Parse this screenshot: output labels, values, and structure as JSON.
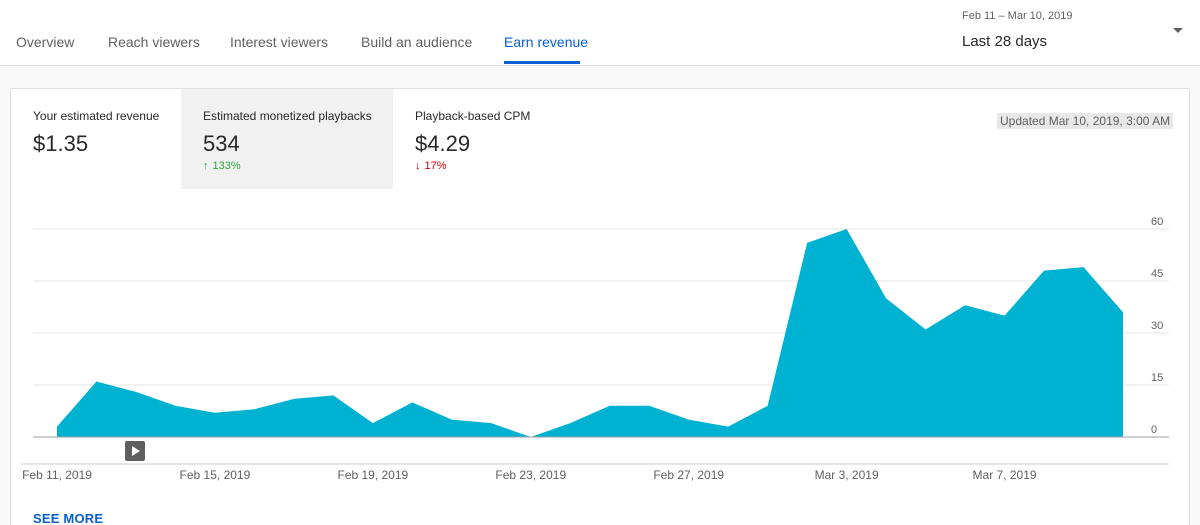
{
  "tabs": [
    {
      "label": "Overview"
    },
    {
      "label": "Reach viewers"
    },
    {
      "label": "Interest viewers"
    },
    {
      "label": "Build an audience"
    },
    {
      "label": "Earn revenue",
      "active": true
    }
  ],
  "date_filter": {
    "range": "Feb 11 – Mar 10, 2019",
    "label": "Last 28 days"
  },
  "metrics": [
    {
      "title": "Your estimated revenue",
      "value": "$1.35"
    },
    {
      "title": "Estimated monetized playbacks",
      "value": "534",
      "delta": "133%",
      "direction": "up",
      "selected": true
    },
    {
      "title": "Playback-based CPM",
      "value": "$4.29",
      "delta": "17%",
      "direction": "down"
    }
  ],
  "updated": "Updated Mar 10, 2019, 3:00 AM",
  "see_more": "SEE MORE",
  "colors": {
    "accent": "#065fd4",
    "area": "#00b2d2",
    "up": "#2ba640",
    "down": "#cc0000"
  },
  "chart_data": {
    "type": "area",
    "series_of": "Estimated monetized playbacks",
    "x": [
      "Feb 11, 2019",
      "Feb 12, 2019",
      "Feb 13, 2019",
      "Feb 14, 2019",
      "Feb 15, 2019",
      "Feb 16, 2019",
      "Feb 17, 2019",
      "Feb 18, 2019",
      "Feb 19, 2019",
      "Feb 20, 2019",
      "Feb 21, 2019",
      "Feb 22, 2019",
      "Feb 23, 2019",
      "Feb 24, 2019",
      "Feb 25, 2019",
      "Feb 26, 2019",
      "Feb 27, 2019",
      "Feb 28, 2019",
      "Mar 1, 2019",
      "Mar 2, 2019",
      "Mar 3, 2019",
      "Mar 4, 2019",
      "Mar 5, 2019",
      "Mar 6, 2019",
      "Mar 7, 2019",
      "Mar 8, 2019",
      "Mar 9, 2019",
      "Mar 10, 2019"
    ],
    "values": [
      3,
      16,
      13,
      9,
      7,
      8,
      11,
      12,
      4,
      10,
      5,
      4,
      0,
      4,
      9,
      9,
      5,
      3,
      9,
      56,
      60,
      40,
      31,
      38,
      35,
      48,
      49,
      36
    ],
    "x_tick_labels": [
      "Feb 11, 2019",
      "Feb 15, 2019",
      "Feb 19, 2019",
      "Feb 23, 2019",
      "Feb 27, 2019",
      "Mar 3, 2019",
      "Mar 7, 2019"
    ],
    "y_ticks": [
      0,
      15,
      30,
      45,
      60
    ],
    "ylim": [
      0,
      60
    ],
    "grid": true,
    "y_axis_side": "right"
  }
}
